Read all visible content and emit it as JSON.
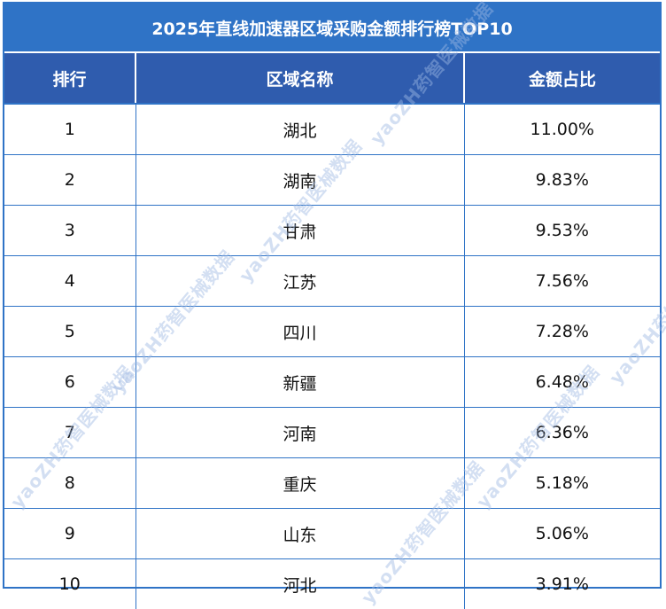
{
  "title": "2025年直线加速器区域采购金额排行榜TOP10",
  "columns": [
    "排行",
    "区域名称",
    "金额占比"
  ],
  "rows": [
    {
      "rank": "1",
      "region": "湖北",
      "share": "11.00%"
    },
    {
      "rank": "2",
      "region": "湖南",
      "share": "9.83%"
    },
    {
      "rank": "3",
      "region": "甘肃",
      "share": "9.53%"
    },
    {
      "rank": "4",
      "region": "江苏",
      "share": "7.56%"
    },
    {
      "rank": "5",
      "region": "四川",
      "share": "7.28%"
    },
    {
      "rank": "6",
      "region": "新疆",
      "share": "6.48%"
    },
    {
      "rank": "7",
      "region": "河南",
      "share": "6.36%"
    },
    {
      "rank": "8",
      "region": "重庆",
      "share": "5.18%"
    },
    {
      "rank": "9",
      "region": "山东",
      "share": "5.06%"
    },
    {
      "rank": "10",
      "region": "河北",
      "share": "3.91%"
    }
  ],
  "watermark": "yaoZH药智医械数据",
  "colors": {
    "title_bg": "#2f73c6",
    "header_bg": "#2f5cae",
    "border": "#2f73c6"
  }
}
